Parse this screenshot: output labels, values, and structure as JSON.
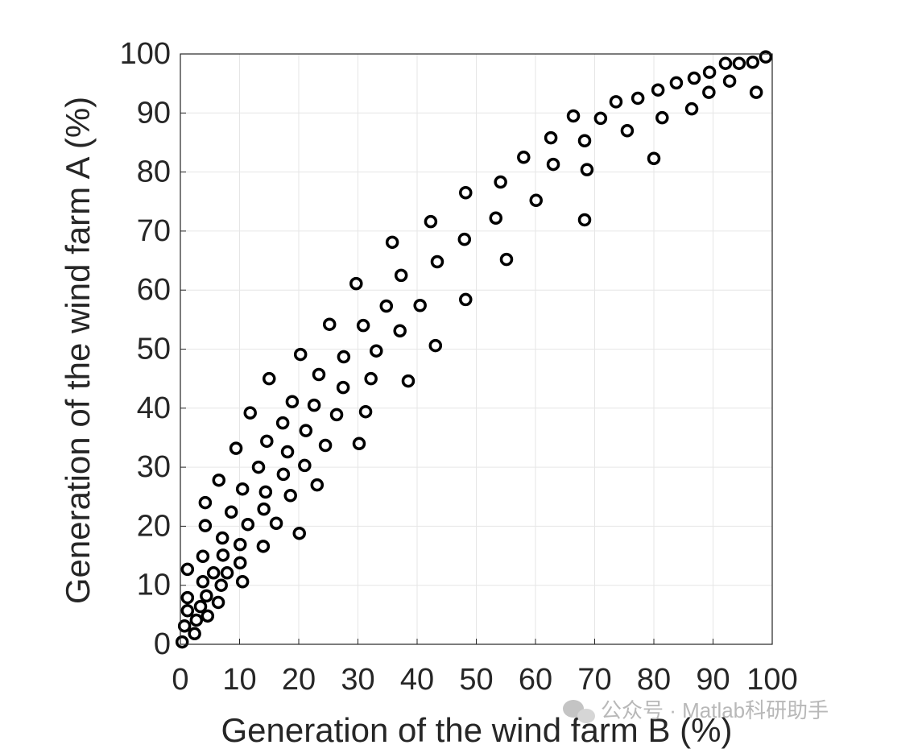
{
  "chart_data": {
    "type": "scatter",
    "xlabel": "Generation of the wind farm B (%)",
    "ylabel": "Generation of the wind farm A (%)",
    "watermark": "公众号 · Matlab科研助手",
    "xlim": [
      0,
      100
    ],
    "ylim": [
      0,
      100
    ],
    "xticks": [
      0,
      10,
      20,
      30,
      40,
      50,
      60,
      70,
      80,
      90,
      100
    ],
    "yticks": [
      0,
      10,
      20,
      30,
      40,
      50,
      60,
      70,
      80,
      90,
      100
    ],
    "grid": true,
    "series": [
      {
        "color": "#000000",
        "x": [
          0.3,
          0.7,
          2.4,
          2.7,
          4.6,
          1.2,
          1.2,
          3.4,
          4.4,
          6.4,
          6.9,
          3.8,
          5.6,
          1.2,
          3.8,
          7.9,
          10.5,
          10.1,
          7.2,
          7.1,
          10.1,
          11.4,
          14.0,
          16.2,
          20.1,
          4.2,
          8.6,
          4.2,
          14.1,
          14.4,
          10.5,
          6.5,
          18.6,
          23.1,
          13.2,
          17.4,
          21.0,
          9.4,
          18.1,
          14.6,
          24.5,
          30.2,
          21.2,
          17.3,
          11.8,
          18.9,
          22.6,
          26.4,
          31.3,
          27.5,
          15.0,
          23.4,
          32.2,
          38.5,
          27.6,
          33.1,
          20.3,
          43.1,
          25.2,
          30.9,
          37.1,
          34.8,
          40.5,
          48.2,
          29.7,
          37.3,
          35.8,
          43.4,
          48.0,
          55.1,
          42.3,
          53.3,
          48.2,
          54.1,
          60.1,
          58.0,
          63.0,
          62.6,
          68.3,
          68.7,
          68.3,
          66.4,
          71.0,
          75.5,
          73.6,
          77.3,
          80.0,
          81.4,
          80.7,
          83.8,
          86.4,
          86.8,
          89.3,
          89.4,
          92.8,
          92.1,
          94.4,
          97.3,
          96.7,
          98.9
        ],
        "values": [
          0.4,
          3.1,
          1.8,
          4.1,
          4.8,
          7.9,
          5.7,
          6.4,
          8.2,
          7.1,
          10.0,
          10.6,
          12.1,
          12.7,
          14.9,
          12.1,
          10.6,
          13.8,
          15.1,
          18.0,
          16.9,
          20.3,
          16.6,
          20.5,
          18.8,
          20.1,
          22.4,
          24.0,
          22.9,
          25.8,
          26.3,
          27.8,
          25.2,
          27.0,
          30.0,
          28.8,
          30.3,
          33.2,
          32.6,
          34.4,
          33.7,
          34.0,
          36.2,
          37.5,
          39.2,
          41.1,
          40.5,
          38.9,
          39.4,
          43.5,
          45.0,
          45.7,
          45.0,
          44.6,
          48.7,
          49.7,
          49.1,
          50.6,
          54.2,
          54.0,
          53.1,
          57.3,
          57.4,
          58.4,
          61.1,
          62.5,
          68.1,
          64.8,
          68.6,
          65.2,
          71.6,
          72.2,
          76.5,
          78.3,
          75.2,
          82.5,
          81.3,
          85.8,
          71.9,
          80.4,
          85.3,
          89.5,
          89.1,
          87.0,
          91.9,
          92.5,
          82.3,
          89.2,
          93.9,
          95.1,
          90.7,
          95.9,
          93.5,
          96.9,
          95.4,
          98.4,
          98.4,
          93.5,
          98.6,
          99.5
        ]
      }
    ]
  }
}
